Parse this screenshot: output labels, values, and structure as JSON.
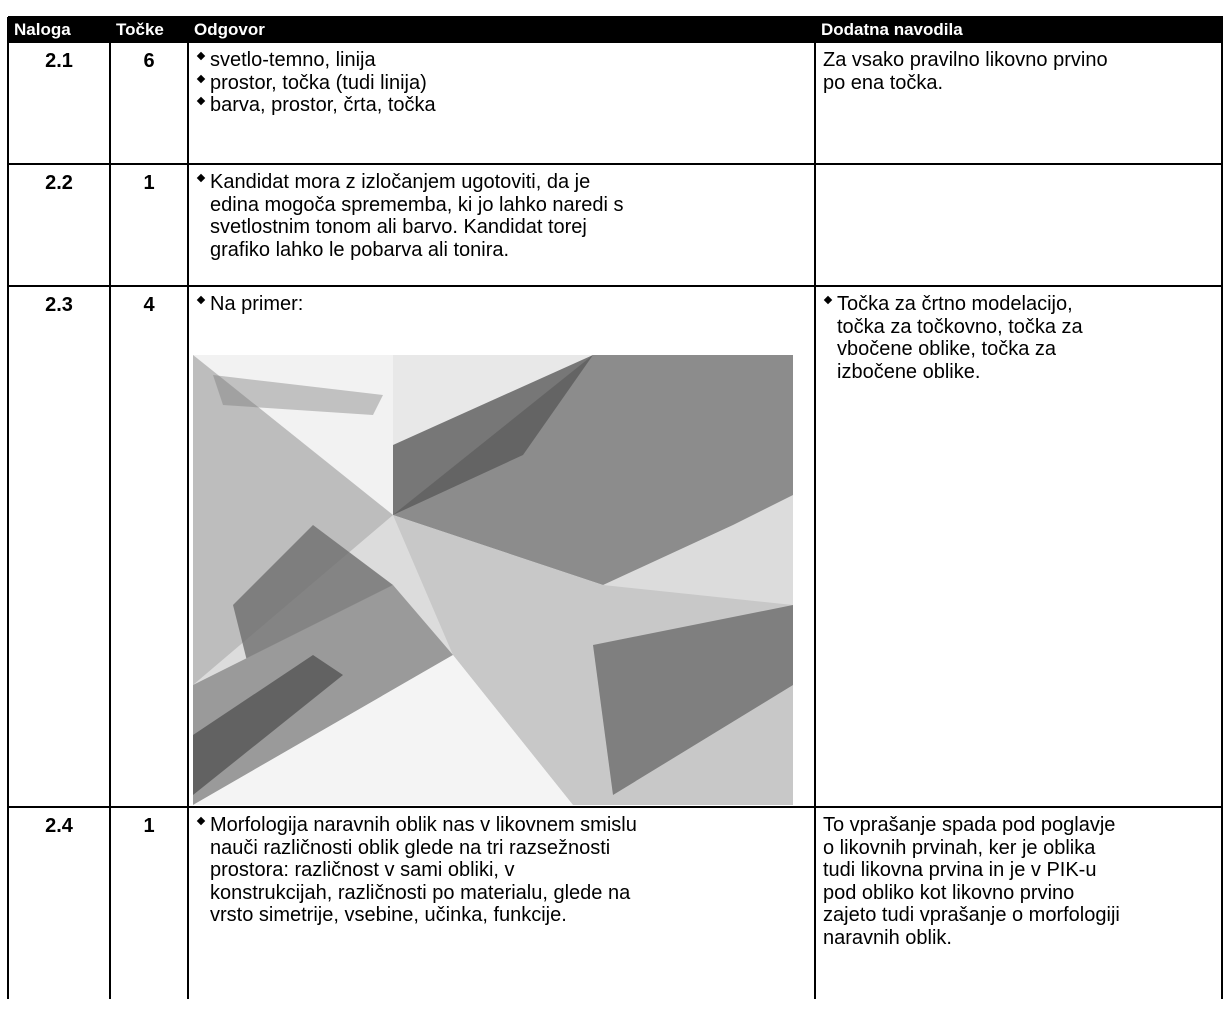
{
  "header": {
    "columns": [
      "Naloga",
      "Točke",
      "Odgovor",
      "Dodatna navodila"
    ]
  },
  "rows": [
    {
      "task": "2.1",
      "points": "6",
      "answer": {
        "bullets": [
          [
            "svetlo-temno, linija"
          ],
          [
            "prostor, točka (tudi linija)"
          ],
          [
            "barva, prostor, črta, točka"
          ]
        ]
      },
      "notes": {
        "lines": [
          "Za vsako pravilno likovno prvino",
          "po ena točka."
        ]
      }
    },
    {
      "task": "2.2",
      "points": "1",
      "answer": {
        "bullets": [
          [
            "Kandidat mora z izločanjem ugotoviti, da je",
            "edina mogoča sprememba, ki jo lahko naredi s",
            "svetlostnim tonom ali barvo. Kandidat torej",
            "grafiko lahko le pobarva ali tonira."
          ]
        ]
      },
      "notes": {
        "lines": []
      }
    },
    {
      "task": "2.3",
      "points": "4",
      "answer": {
        "bullets": [
          [
            "Na primer:"
          ]
        ]
      },
      "notes": {
        "bullets": [
          [
            "Točka za črtno modelacijo,",
            "točka za točkovno, točka za",
            "vbočene oblike, točka za",
            "izbočene oblike."
          ]
        ]
      }
    },
    {
      "task": "2.4",
      "points": "1",
      "answer": {
        "bullets": [
          [
            "Morfologija naravnih oblik nas v likovnem smislu",
            "nauči različnosti oblik glede na tri razsežnosti",
            "prostora: različnost v sami obliki, v",
            "konstrukcijah, različnosti po materialu, glede na",
            "vrsto simetrije, vsebine, učinka, funkcije."
          ]
        ]
      },
      "notes": {
        "lines": [
          "To vprašanje spada pod poglavje",
          "o likovnih prvinah, ker je oblika",
          "tudi likovna prvina in je v PIK-u",
          "pod obliko kot likovno prvino",
          "zajeto tudi vprašanje o morfologiji",
          "naravnih oblik."
        ]
      }
    }
  ]
}
